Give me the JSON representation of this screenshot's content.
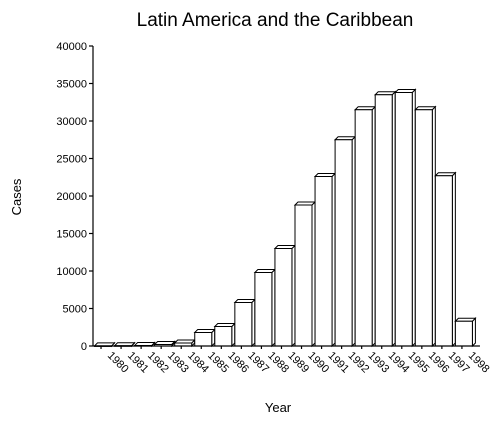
{
  "chart_data": {
    "type": "bar",
    "title": "Latin America and the Caribbean",
    "xlabel": "Year",
    "ylabel": "Cases",
    "ylim": [
      0,
      40000
    ],
    "yticks": [
      0,
      5000,
      10000,
      15000,
      20000,
      25000,
      30000,
      35000,
      40000
    ],
    "categories": [
      "1980",
      "1981",
      "1982",
      "1983",
      "1984",
      "1985",
      "1986",
      "1987",
      "1988",
      "1989",
      "1990",
      "1991",
      "1992",
      "1993",
      "1994",
      "1995",
      "1996",
      "1997",
      "1998"
    ],
    "values": [
      10,
      30,
      60,
      200,
      400,
      1800,
      2600,
      5800,
      9800,
      13000,
      18800,
      22600,
      27500,
      31500,
      33500,
      33800,
      31500,
      22700,
      3300
    ],
    "grid": false,
    "legend": "none"
  }
}
